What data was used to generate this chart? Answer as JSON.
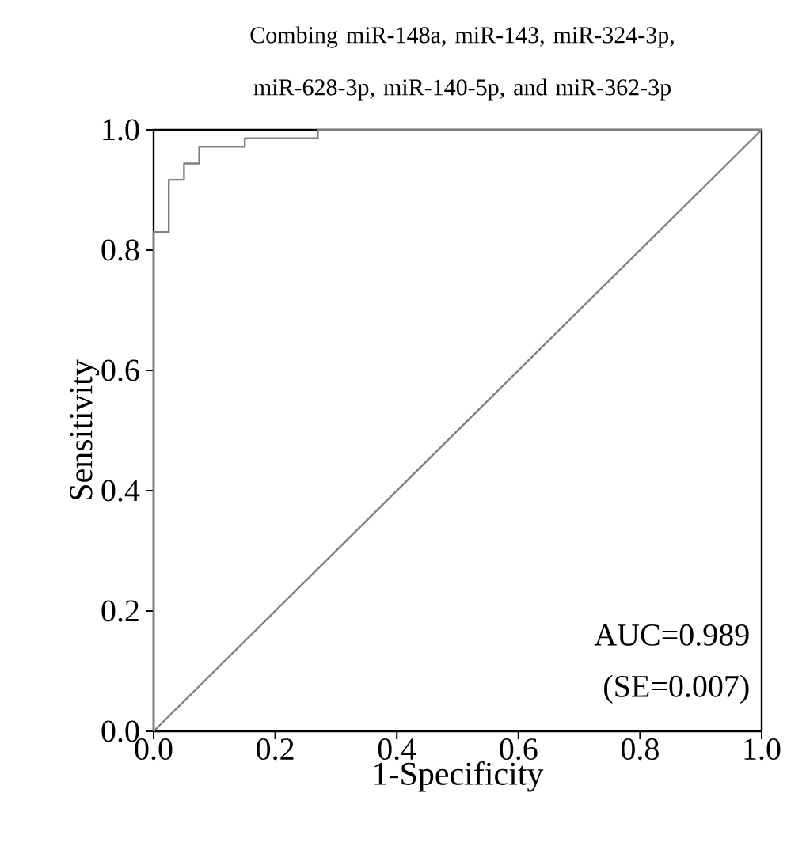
{
  "chart_data": {
    "type": "step",
    "title": "Combing miR-148a, miR-143, miR-324-3p, miR-628-3p, miR-140-5p, and miR-362-3p",
    "xlabel": "1-Specificity",
    "ylabel": "Sensitivity",
    "annotations": [
      "AUC=0.989",
      "(SE=0.007)"
    ],
    "xlim": [
      0,
      1
    ],
    "ylim": [
      0,
      1
    ],
    "xticks": [
      {
        "value": 0,
        "label": "0.0"
      },
      {
        "value": 0.2,
        "label": "0.2"
      },
      {
        "value": 0.4,
        "label": "0.4"
      },
      {
        "value": 0.6,
        "label": "0.6"
      },
      {
        "value": 0.8,
        "label": "0.8"
      },
      {
        "value": 1,
        "label": "1.0"
      }
    ],
    "yticks": [
      {
        "value": 0,
        "label": "0.0"
      },
      {
        "value": 0.2,
        "label": "0.2"
      },
      {
        "value": 0.4,
        "label": "0.4"
      },
      {
        "value": 0.6,
        "label": "0.6"
      },
      {
        "value": 0.8,
        "label": "0.8"
      },
      {
        "value": 1,
        "label": "1.0"
      }
    ],
    "series": [
      {
        "color": "#808080",
        "x": [
          0,
          0,
          0.025,
          0.025,
          0.05,
          0.05,
          0.075,
          0.075,
          0.15,
          0.15,
          0.27,
          0.27,
          1
        ],
        "values": [
          0,
          0.83,
          0.83,
          0.917,
          0.917,
          0.944,
          0.944,
          0.972,
          0.972,
          0.986,
          0.986,
          1,
          1
        ]
      },
      {
        "type": "line",
        "color": "#808080",
        "x": [
          0,
          1
        ],
        "values": [
          0,
          1
        ]
      }
    ]
  }
}
